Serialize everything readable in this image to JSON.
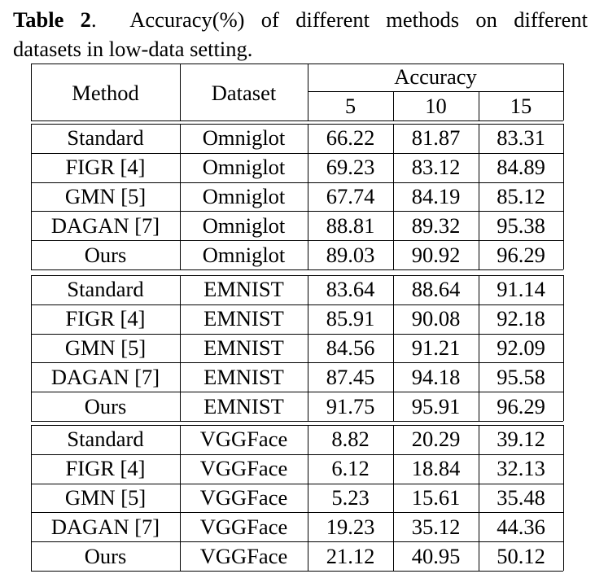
{
  "caption": {
    "label": "Table 2",
    "line1": "Accuracy(%) of different methods on different",
    "line2": "datasets in low-data setting."
  },
  "table": {
    "header": {
      "method": "Method",
      "dataset": "Dataset",
      "accuracy": "Accuracy",
      "shots": [
        "5",
        "10",
        "15"
      ]
    },
    "groups": [
      {
        "rows": [
          {
            "method": "Standard",
            "dataset": "Omniglot",
            "values": [
              "66.22",
              "81.87",
              "83.31"
            ]
          },
          {
            "method": "FIGR [4]",
            "dataset": "Omniglot",
            "values": [
              "69.23",
              "83.12",
              "84.89"
            ]
          },
          {
            "method": "GMN [5]",
            "dataset": "Omniglot",
            "values": [
              "67.74",
              "84.19",
              "85.12"
            ]
          },
          {
            "method": "DAGAN [7]",
            "dataset": "Omniglot",
            "values": [
              "88.81",
              "89.32",
              "95.38"
            ]
          },
          {
            "method": "Ours",
            "dataset": "Omniglot",
            "values": [
              "89.03",
              "90.92",
              "96.29"
            ]
          }
        ]
      },
      {
        "rows": [
          {
            "method": "Standard",
            "dataset": "EMNIST",
            "values": [
              "83.64",
              "88.64",
              "91.14"
            ]
          },
          {
            "method": "FIGR [4]",
            "dataset": "EMNIST",
            "values": [
              "85.91",
              "90.08",
              "92.18"
            ]
          },
          {
            "method": "GMN [5]",
            "dataset": "EMNIST",
            "values": [
              "84.56",
              "91.21",
              "92.09"
            ]
          },
          {
            "method": "DAGAN [7]",
            "dataset": "EMNIST",
            "values": [
              "87.45",
              "94.18",
              "95.58"
            ]
          },
          {
            "method": "Ours",
            "dataset": "EMNIST",
            "values": [
              "91.75",
              "95.91",
              "96.29"
            ]
          }
        ]
      },
      {
        "rows": [
          {
            "method": "Standard",
            "dataset": "VGGFace",
            "values": [
              "8.82",
              "20.29",
              "39.12"
            ]
          },
          {
            "method": "FIGR [4]",
            "dataset": "VGGFace",
            "values": [
              "6.12",
              "18.84",
              "32.13"
            ]
          },
          {
            "method": "GMN [5]",
            "dataset": "VGGFace",
            "values": [
              "5.23",
              "15.61",
              "35.48"
            ]
          },
          {
            "method": "DAGAN [7]",
            "dataset": "VGGFace",
            "values": [
              "19.23",
              "35.12",
              "44.36"
            ]
          },
          {
            "method": "Ours",
            "dataset": "VGGFace",
            "values": [
              "21.12",
              "40.95",
              "50.12"
            ]
          }
        ]
      }
    ]
  }
}
